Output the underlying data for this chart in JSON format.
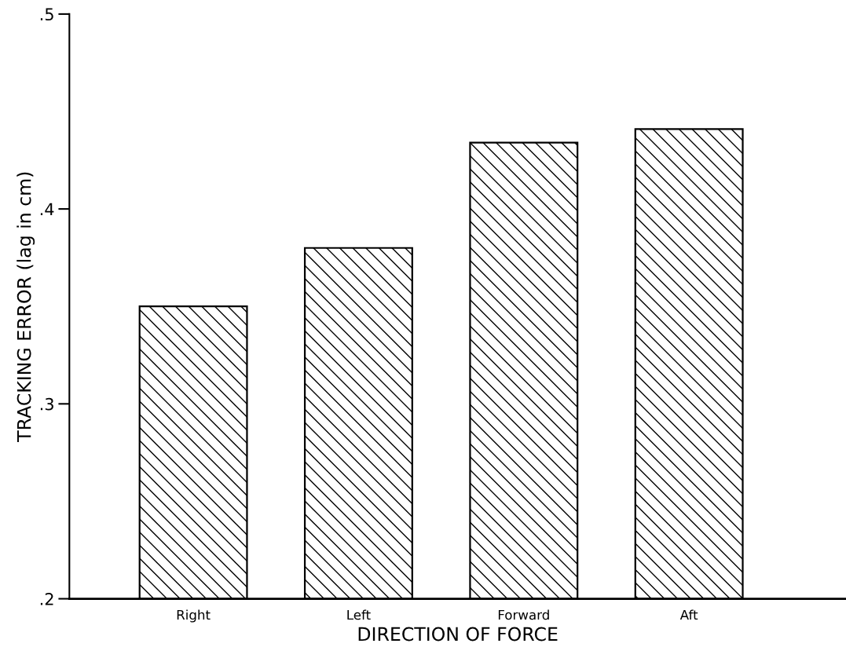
{
  "chart_data": {
    "type": "bar",
    "xlabel": "DIRECTION OF FORCE",
    "ylabel": "TRACKING ERROR (lag in cm)",
    "categories": [
      "Right",
      "Left",
      "Forward",
      "Aft"
    ],
    "values": [
      0.35,
      0.38,
      0.434,
      0.441
    ],
    "color": "#000000",
    "ylim": [
      0.2,
      0.5
    ],
    "yticks": [
      {
        "value": 0.2,
        "label": ".2"
      },
      {
        "value": 0.3,
        "label": ".3"
      },
      {
        "value": 0.4,
        "label": ".4"
      },
      {
        "value": 0.5,
        "label": ".5"
      }
    ],
    "grid": false
  }
}
